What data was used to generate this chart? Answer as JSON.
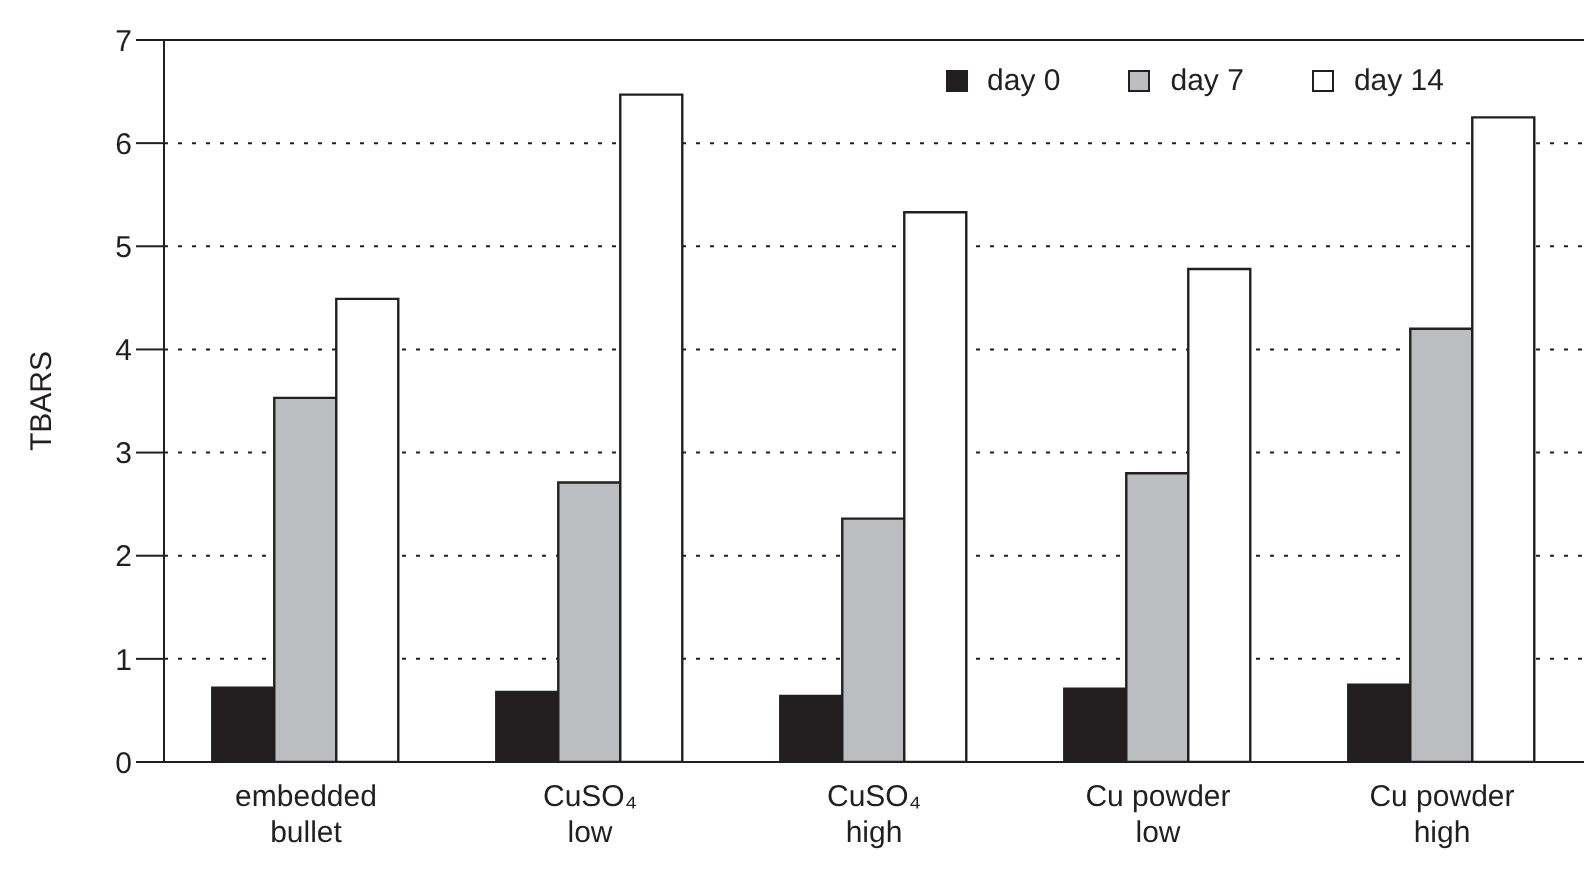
{
  "chart_data": {
    "type": "bar",
    "ylabel": "TBARS",
    "categories": [
      "embedded\nbullet",
      "CuSO₄\nlow",
      "CuSO₄\nhigh",
      "Cu powder\nlow",
      "Cu powder\nhigh"
    ],
    "series": [
      {
        "name": "day 0",
        "color": "#231f20",
        "values": [
          0.72,
          0.68,
          0.64,
          0.71,
          0.75
        ]
      },
      {
        "name": "day 7",
        "color": "#bcbdc0",
        "values": [
          3.53,
          2.71,
          2.36,
          2.8,
          4.2
        ]
      },
      {
        "name": "day 14",
        "color": "#ffffff",
        "values": [
          4.49,
          6.47,
          5.33,
          4.78,
          6.25
        ]
      }
    ],
    "ylim": [
      0,
      7
    ],
    "yticks": [
      0,
      1,
      2,
      3,
      4,
      5,
      6,
      7
    ],
    "grid": "y",
    "legend": "top right"
  }
}
